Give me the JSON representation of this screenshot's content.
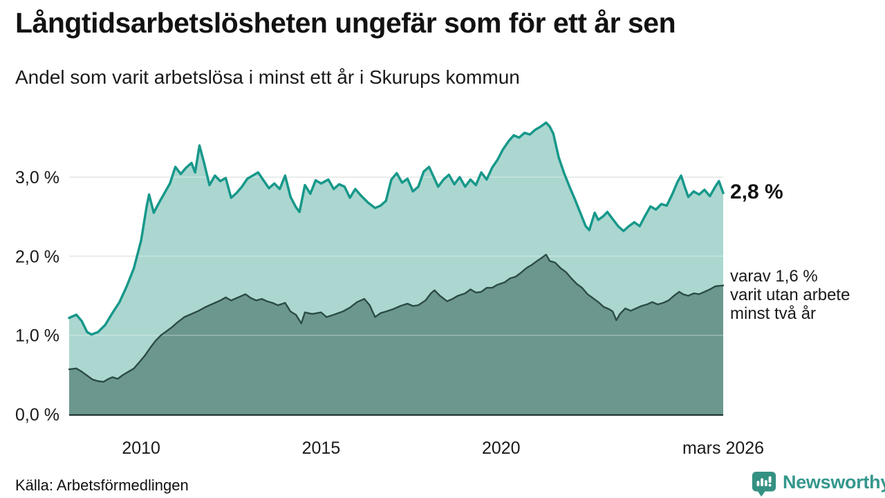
{
  "header": {
    "title": "Långtidsarbetslösheten ungefär som för ett år sen",
    "subtitle": "Andel som varit arbetslösa i minst ett år i Skurups kommun"
  },
  "chart_data": {
    "type": "area",
    "title": "Långtidsarbetslösheten ungefär som för ett år sen",
    "subtitle": "Andel som varit arbetslösa i minst ett år i Skurups kommun",
    "xlabel": "",
    "ylabel": "",
    "xlim": [
      2008.0,
      2026.17
    ],
    "ylim": [
      0,
      3.85
    ],
    "grid": "horizontal",
    "legend_position": "right-annotations",
    "colors": {
      "series1_line": "#17988a",
      "series1_fill": "#abd7d0",
      "series2_line": "#2c4b46",
      "series2_fill": "#6c978f",
      "gridline": "#d8dcdc",
      "axis_line": "#1f3531"
    },
    "y_ticks": [
      {
        "label": "0,0 %",
        "v": 0
      },
      {
        "label": "1,0 %",
        "v": 1
      },
      {
        "label": "2,0 %",
        "v": 2
      },
      {
        "label": "3,0 %",
        "v": 3
      }
    ],
    "x_ticks": [
      {
        "label": "2010",
        "t": 2010
      },
      {
        "label": "2015",
        "t": 2015
      },
      {
        "label": "2020",
        "t": 2020
      },
      {
        "label": "mars 2026",
        "t": 2026.17
      }
    ],
    "series": [
      {
        "name": "Arbetslösa minst ett år",
        "x": [
          2008.0,
          2008.2,
          2008.35,
          2008.5,
          2008.62,
          2008.8,
          2009.0,
          2009.2,
          2009.4,
          2009.6,
          2009.8,
          2010.0,
          2010.15,
          2010.22,
          2010.35,
          2010.5,
          2010.65,
          2010.8,
          2010.95,
          2011.1,
          2011.25,
          2011.4,
          2011.5,
          2011.62,
          2011.75,
          2011.9,
          2012.05,
          2012.2,
          2012.35,
          2012.5,
          2012.65,
          2012.8,
          2012.95,
          2013.1,
          2013.25,
          2013.4,
          2013.55,
          2013.7,
          2013.85,
          2014.0,
          2014.15,
          2014.3,
          2014.4,
          2014.55,
          2014.7,
          2014.85,
          2015.0,
          2015.2,
          2015.35,
          2015.5,
          2015.65,
          2015.8,
          2015.95,
          2016.1,
          2016.3,
          2016.5,
          2016.65,
          2016.8,
          2016.95,
          2017.1,
          2017.25,
          2017.4,
          2017.55,
          2017.7,
          2017.85,
          2018.0,
          2018.1,
          2018.25,
          2018.4,
          2018.55,
          2018.7,
          2018.85,
          2019.0,
          2019.15,
          2019.3,
          2019.45,
          2019.6,
          2019.75,
          2019.9,
          2020.05,
          2020.2,
          2020.35,
          2020.5,
          2020.65,
          2020.8,
          2020.95,
          2021.1,
          2021.25,
          2021.35,
          2021.45,
          2021.6,
          2021.75,
          2021.9,
          2022.05,
          2022.2,
          2022.35,
          2022.45,
          2022.6,
          2022.7,
          2022.85,
          2022.95,
          2023.1,
          2023.25,
          2023.4,
          2023.55,
          2023.7,
          2023.85,
          2024.0,
          2024.15,
          2024.3,
          2024.45,
          2024.6,
          2024.75,
          2024.9,
          2025.0,
          2025.1,
          2025.2,
          2025.35,
          2025.5,
          2025.65,
          2025.8,
          2025.95,
          2026.05,
          2026.17
        ],
        "values": [
          1.22,
          1.26,
          1.18,
          1.04,
          1.01,
          1.04,
          1.13,
          1.28,
          1.42,
          1.62,
          1.85,
          2.2,
          2.62,
          2.78,
          2.55,
          2.68,
          2.8,
          2.92,
          3.13,
          3.04,
          3.12,
          3.18,
          3.06,
          3.4,
          3.18,
          2.9,
          3.02,
          2.95,
          2.99,
          2.74,
          2.8,
          2.88,
          2.98,
          3.02,
          3.06,
          2.96,
          2.86,
          2.92,
          2.85,
          3.02,
          2.75,
          2.62,
          2.56,
          2.9,
          2.79,
          2.96,
          2.92,
          2.97,
          2.85,
          2.91,
          2.88,
          2.74,
          2.85,
          2.77,
          2.68,
          2.61,
          2.64,
          2.7,
          2.97,
          3.05,
          2.93,
          2.98,
          2.82,
          2.88,
          3.07,
          3.13,
          3.03,
          2.88,
          2.97,
          3.03,
          2.91,
          3.0,
          2.88,
          2.97,
          2.9,
          3.06,
          2.97,
          3.12,
          3.22,
          3.35,
          3.45,
          3.53,
          3.5,
          3.56,
          3.54,
          3.6,
          3.64,
          3.69,
          3.64,
          3.55,
          3.25,
          3.05,
          2.88,
          2.72,
          2.55,
          2.38,
          2.33,
          2.55,
          2.46,
          2.51,
          2.56,
          2.47,
          2.38,
          2.32,
          2.38,
          2.43,
          2.38,
          2.51,
          2.63,
          2.59,
          2.66,
          2.64,
          2.78,
          2.94,
          3.02,
          2.88,
          2.75,
          2.82,
          2.78,
          2.84,
          2.76,
          2.88,
          2.95,
          2.8
        ],
        "last_value_pct": 2.8
      },
      {
        "name": "Arbetslösa minst två år",
        "x": [
          2008.0,
          2008.2,
          2008.35,
          2008.5,
          2008.65,
          2008.8,
          2008.95,
          2009.1,
          2009.2,
          2009.35,
          2009.5,
          2009.65,
          2009.8,
          2009.95,
          2010.1,
          2010.25,
          2010.4,
          2010.55,
          2010.7,
          2010.85,
          2011.0,
          2011.2,
          2011.4,
          2011.6,
          2011.8,
          2012.0,
          2012.2,
          2012.35,
          2012.5,
          2012.7,
          2012.9,
          2013.05,
          2013.2,
          2013.35,
          2013.5,
          2013.65,
          2013.8,
          2014.0,
          2014.15,
          2014.3,
          2014.45,
          2014.55,
          2014.75,
          2015.0,
          2015.15,
          2015.35,
          2015.6,
          2015.8,
          2016.0,
          2016.2,
          2016.35,
          2016.5,
          2016.65,
          2016.8,
          2017.0,
          2017.2,
          2017.4,
          2017.55,
          2017.7,
          2017.9,
          2018.05,
          2018.15,
          2018.3,
          2018.5,
          2018.65,
          2018.8,
          2019.0,
          2019.15,
          2019.3,
          2019.45,
          2019.6,
          2019.75,
          2019.9,
          2020.1,
          2020.25,
          2020.4,
          2020.55,
          2020.7,
          2020.85,
          2021.0,
          2021.1,
          2021.25,
          2021.35,
          2021.5,
          2021.65,
          2021.8,
          2021.95,
          2022.1,
          2022.25,
          2022.4,
          2022.55,
          2022.7,
          2022.85,
          2023.0,
          2023.1,
          2023.2,
          2023.3,
          2023.45,
          2023.6,
          2023.75,
          2023.9,
          2024.05,
          2024.2,
          2024.35,
          2024.5,
          2024.65,
          2024.8,
          2024.95,
          2025.05,
          2025.2,
          2025.35,
          2025.5,
          2025.65,
          2025.8,
          2025.95,
          2026.17
        ],
        "values": [
          0.57,
          0.58,
          0.54,
          0.49,
          0.44,
          0.42,
          0.41,
          0.45,
          0.47,
          0.45,
          0.5,
          0.54,
          0.58,
          0.66,
          0.74,
          0.84,
          0.93,
          1.0,
          1.05,
          1.1,
          1.16,
          1.23,
          1.27,
          1.31,
          1.36,
          1.4,
          1.44,
          1.48,
          1.44,
          1.48,
          1.52,
          1.47,
          1.44,
          1.46,
          1.43,
          1.41,
          1.38,
          1.41,
          1.3,
          1.26,
          1.15,
          1.29,
          1.27,
          1.29,
          1.23,
          1.26,
          1.3,
          1.35,
          1.42,
          1.46,
          1.38,
          1.23,
          1.28,
          1.3,
          1.33,
          1.37,
          1.4,
          1.37,
          1.38,
          1.44,
          1.53,
          1.57,
          1.5,
          1.43,
          1.46,
          1.5,
          1.53,
          1.58,
          1.54,
          1.55,
          1.6,
          1.6,
          1.64,
          1.67,
          1.72,
          1.74,
          1.79,
          1.85,
          1.89,
          1.94,
          1.97,
          2.02,
          1.94,
          1.92,
          1.85,
          1.8,
          1.72,
          1.65,
          1.6,
          1.52,
          1.47,
          1.42,
          1.36,
          1.33,
          1.3,
          1.19,
          1.27,
          1.34,
          1.31,
          1.34,
          1.37,
          1.39,
          1.42,
          1.39,
          1.41,
          1.44,
          1.5,
          1.55,
          1.52,
          1.5,
          1.53,
          1.52,
          1.55,
          1.58,
          1.62,
          1.63
        ],
        "last_value_pct": 1.6
      }
    ],
    "annotations": {
      "last_value": "2,8 %",
      "secondary": {
        "line1": "varav 1,6 %",
        "line2": "varit utan arbete",
        "line3": "minst två år"
      }
    }
  },
  "footer": {
    "source": "Källa: Arbetsförmedlingen",
    "brand": "Newsworthy",
    "brand_color": "#35978c"
  }
}
